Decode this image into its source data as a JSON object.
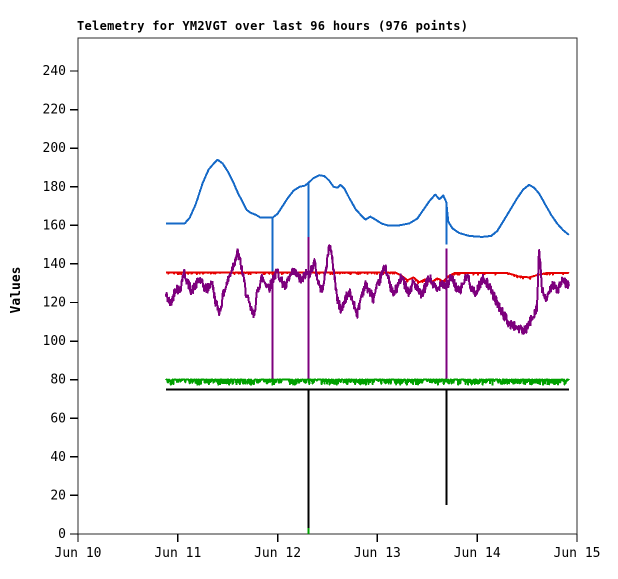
{
  "title": "Telemetry for YM2VGT over last 96 hours (976 points)",
  "chart_data": {
    "type": "line",
    "title": "Telemetry for YM2VGT over last 96 hours (976 points)",
    "xlabel": "",
    "ylabel": "Values",
    "grid": false,
    "legend": "none",
    "x_axis": {
      "tick_labels": [
        "Jun 10",
        "Jun 11",
        "Jun 12",
        "Jun 13",
        "Jun 14",
        "Jun 15"
      ],
      "range_days": [
        0,
        5
      ]
    },
    "y_axis": {
      "ticks": [
        0,
        20,
        40,
        60,
        80,
        100,
        120,
        140,
        160,
        180,
        200,
        220,
        240
      ],
      "range": [
        0,
        257
      ]
    },
    "data_start_day": 0.88,
    "data_end_day": 4.92,
    "points_count": 976,
    "series": [
      {
        "name": "blue",
        "color": "#1569C7",
        "seed": 3,
        "noise": {
          "mode": "none",
          "amp": 0,
          "density": 0
        },
        "keypoints": [
          [
            0.88,
            161
          ],
          [
            1.07,
            161
          ],
          [
            1.12,
            164
          ],
          [
            1.18,
            171
          ],
          [
            1.25,
            182
          ],
          [
            1.31,
            189
          ],
          [
            1.36,
            192
          ],
          [
            1.4,
            194
          ],
          [
            1.45,
            192
          ],
          [
            1.5,
            188
          ],
          [
            1.55,
            183
          ],
          [
            1.6,
            177
          ],
          [
            1.65,
            172
          ],
          [
            1.69,
            168
          ],
          [
            1.73,
            166.5
          ],
          [
            1.78,
            165.5
          ],
          [
            1.83,
            164
          ],
          [
            1.95,
            164
          ],
          [
            2.0,
            166
          ],
          [
            2.05,
            170
          ],
          [
            2.1,
            174
          ],
          [
            2.16,
            178
          ],
          [
            2.22,
            180
          ],
          [
            2.27,
            180.5
          ],
          [
            2.31,
            182
          ],
          [
            2.36,
            184.5
          ],
          [
            2.42,
            186
          ],
          [
            2.47,
            185.5
          ],
          [
            2.52,
            183
          ],
          [
            2.56,
            180
          ],
          [
            2.6,
            179.5
          ],
          [
            2.63,
            181
          ],
          [
            2.67,
            179
          ],
          [
            2.72,
            174
          ],
          [
            2.78,
            168.5
          ],
          [
            2.84,
            165
          ],
          [
            2.88,
            163
          ],
          [
            2.93,
            164.5
          ],
          [
            2.98,
            163
          ],
          [
            3.04,
            161
          ],
          [
            3.1,
            160
          ],
          [
            3.22,
            160
          ],
          [
            3.32,
            161
          ],
          [
            3.4,
            163.5
          ],
          [
            3.46,
            168
          ],
          [
            3.52,
            172.5
          ],
          [
            3.58,
            176
          ],
          [
            3.62,
            173.5
          ],
          [
            3.66,
            175.5
          ],
          [
            3.69,
            172
          ],
          [
            3.71,
            162
          ],
          [
            3.75,
            158.5
          ],
          [
            3.82,
            156
          ],
          [
            3.92,
            154.5
          ],
          [
            4.05,
            154
          ],
          [
            4.14,
            154.5
          ],
          [
            4.2,
            157
          ],
          [
            4.26,
            162
          ],
          [
            4.33,
            168
          ],
          [
            4.4,
            174
          ],
          [
            4.46,
            178.5
          ],
          [
            4.52,
            181
          ],
          [
            4.57,
            179.5
          ],
          [
            4.62,
            176.5
          ],
          [
            4.68,
            171
          ],
          [
            4.74,
            165.5
          ],
          [
            4.8,
            161
          ],
          [
            4.86,
            157.5
          ],
          [
            4.92,
            155
          ]
        ],
        "spikes": [
          [
            1.95,
            164,
            135.5
          ],
          [
            2.31,
            182,
            154
          ],
          [
            3.69,
            172,
            150
          ]
        ]
      },
      {
        "name": "red",
        "color": "#E60000",
        "seed": 11,
        "noise": {
          "mode": "dip",
          "amp": 0.9,
          "density": 0.15
        },
        "keypoints": [
          [
            0.88,
            135.5
          ],
          [
            3.18,
            135.5
          ],
          [
            3.24,
            134
          ],
          [
            3.3,
            131.5
          ],
          [
            3.36,
            133
          ],
          [
            3.42,
            130.5
          ],
          [
            3.48,
            132
          ],
          [
            3.54,
            130.5
          ],
          [
            3.6,
            132.5
          ],
          [
            3.66,
            131
          ],
          [
            3.71,
            133.5
          ],
          [
            3.77,
            135.3
          ],
          [
            4.3,
            135.3
          ],
          [
            4.42,
            133.5
          ],
          [
            4.52,
            133
          ],
          [
            4.62,
            134.5
          ],
          [
            4.7,
            135.3
          ],
          [
            4.92,
            135.3
          ]
        ],
        "spikes": []
      },
      {
        "name": "purple",
        "color": "#7D007D",
        "seed": 42,
        "noise": {
          "mode": "sym",
          "amp": 2.5,
          "density": 1
        },
        "keypoints": [
          [
            0.88,
            124
          ],
          [
            0.93,
            119
          ],
          [
            0.98,
            128
          ],
          [
            1.02,
            126
          ],
          [
            1.06,
            136
          ],
          [
            1.1,
            130
          ],
          [
            1.14,
            126
          ],
          [
            1.18,
            129
          ],
          [
            1.22,
            132
          ],
          [
            1.26,
            128
          ],
          [
            1.3,
            127
          ],
          [
            1.34,
            131
          ],
          [
            1.38,
            120
          ],
          [
            1.42,
            115
          ],
          [
            1.46,
            125
          ],
          [
            1.5,
            131
          ],
          [
            1.54,
            137
          ],
          [
            1.6,
            146
          ],
          [
            1.64,
            138
          ],
          [
            1.68,
            126
          ],
          [
            1.72,
            118
          ],
          [
            1.76,
            113
          ],
          [
            1.8,
            126
          ],
          [
            1.84,
            133
          ],
          [
            1.88,
            130
          ],
          [
            1.92,
            128
          ],
          [
            1.96,
            133
          ],
          [
            2.0,
            136
          ],
          [
            2.04,
            131
          ],
          [
            2.08,
            128
          ],
          [
            2.12,
            133
          ],
          [
            2.16,
            136
          ],
          [
            2.2,
            134
          ],
          [
            2.24,
            131
          ],
          [
            2.28,
            135
          ],
          [
            2.32,
            135
          ],
          [
            2.37,
            141
          ],
          [
            2.4,
            132
          ],
          [
            2.44,
            126
          ],
          [
            2.48,
            135
          ],
          [
            2.52,
            151
          ],
          [
            2.56,
            138
          ],
          [
            2.6,
            121
          ],
          [
            2.64,
            116
          ],
          [
            2.68,
            122
          ],
          [
            2.72,
            125
          ],
          [
            2.76,
            120
          ],
          [
            2.8,
            114
          ],
          [
            2.84,
            124
          ],
          [
            2.88,
            129
          ],
          [
            2.92,
            126
          ],
          [
            2.96,
            122
          ],
          [
            3.0,
            128
          ],
          [
            3.04,
            134
          ],
          [
            3.08,
            139
          ],
          [
            3.12,
            130
          ],
          [
            3.16,
            124
          ],
          [
            3.2,
            128
          ],
          [
            3.24,
            133
          ],
          [
            3.28,
            129
          ],
          [
            3.32,
            125
          ],
          [
            3.36,
            131
          ],
          [
            3.4,
            127
          ],
          [
            3.44,
            123
          ],
          [
            3.48,
            128
          ],
          [
            3.52,
            133
          ],
          [
            3.56,
            129
          ],
          [
            3.6,
            126
          ],
          [
            3.64,
            131
          ],
          [
            3.69,
            128
          ],
          [
            3.74,
            133
          ],
          [
            3.78,
            129
          ],
          [
            3.82,
            125
          ],
          [
            3.86,
            130
          ],
          [
            3.9,
            134
          ],
          [
            3.94,
            128
          ],
          [
            3.98,
            124
          ],
          [
            4.02,
            129
          ],
          [
            4.07,
            133
          ],
          [
            4.12,
            128
          ],
          [
            4.18,
            122
          ],
          [
            4.25,
            115
          ],
          [
            4.32,
            109
          ],
          [
            4.4,
            107
          ],
          [
            4.48,
            105
          ],
          [
            4.55,
            112
          ],
          [
            4.6,
            118
          ],
          [
            4.62,
            148
          ],
          [
            4.65,
            126
          ],
          [
            4.7,
            121
          ],
          [
            4.75,
            130
          ],
          [
            4.8,
            126
          ],
          [
            4.85,
            131
          ],
          [
            4.92,
            129
          ]
        ],
        "spikes": [
          [
            1.95,
            130,
            80
          ],
          [
            2.31,
            154,
            80
          ],
          [
            3.69,
            148,
            80
          ]
        ]
      },
      {
        "name": "black",
        "color": "#000000",
        "seed": 5,
        "noise": {
          "mode": "none",
          "amp": 0,
          "density": 0
        },
        "keypoints": [
          [
            0.88,
            75
          ],
          [
            4.92,
            75
          ]
        ],
        "spikes": [
          [
            2.31,
            75,
            0
          ],
          [
            3.69,
            75,
            15
          ]
        ]
      },
      {
        "name": "green",
        "color": "#00A000",
        "seed": 7,
        "noise": {
          "mode": "dip",
          "amp": 2.6,
          "density": 0.45
        },
        "keypoints": [
          [
            0.88,
            80
          ],
          [
            4.92,
            80
          ]
        ],
        "spikes": [
          [
            2.31,
            3,
            0
          ]
        ]
      }
    ]
  },
  "colors": {
    "background": "#ffffff",
    "axis": "#000000",
    "border": "#2b2b2b"
  }
}
